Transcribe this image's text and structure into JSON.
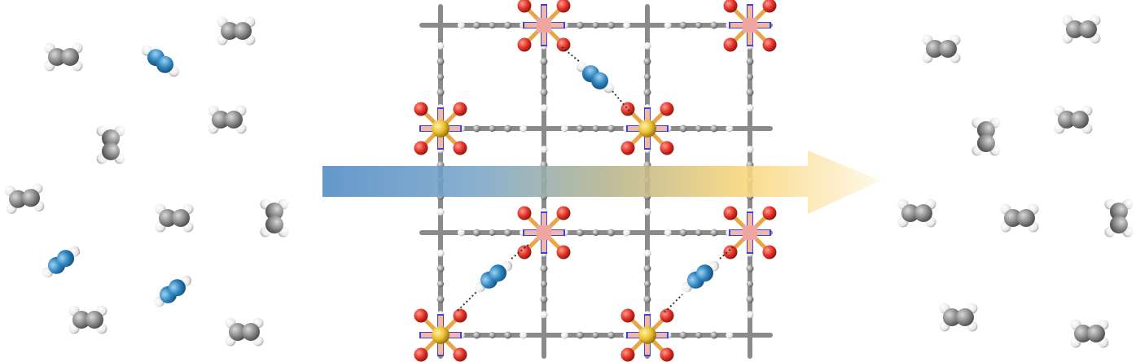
{
  "figure": {
    "type": "molecular-separation-schematic",
    "panels": [
      "input-gas-mixture",
      "framework-sieve",
      "purified-output"
    ],
    "colors": {
      "carbon": "#7f7f7f",
      "hydrogen": "#f2f2f2",
      "alkyne_carbon": "#2f86c0",
      "framework_bond": "#8a8a8a",
      "metal_center": "#f1a5a0",
      "sulfur": "#e8be2d",
      "oxygen": "#e23328",
      "nitrogen": "#3b43d8",
      "arrow_start": "#4f8ac4",
      "arrow_end": "#fff6df"
    },
    "icons": {
      "ethylene": "ethylene-molecule-icon",
      "acetylene": "acetylene-molecule-icon",
      "metal_node": "sif6-metal-node-icon",
      "arrow": "flow-arrow-icon"
    }
  }
}
